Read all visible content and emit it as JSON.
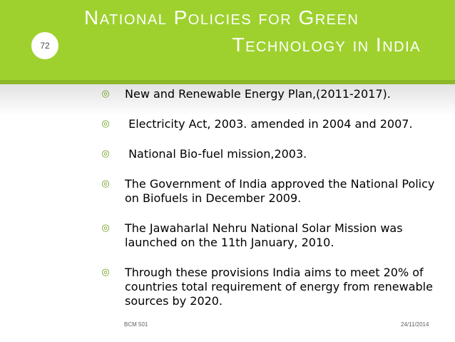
{
  "slide": {
    "title_line1": "National Policies for Green",
    "title_line2": "Technology in India",
    "page_number": "72",
    "bullet_icon": "target-bullet-icon",
    "bullets": [
      "New and Renewable Energy Plan,(2011-2017).",
      " Electricity Act, 2003. amended in 2004 and 2007.",
      " National Bio-fuel mission,2003.",
      "The Government of India approved the National Policy on Biofuels in December 2009.",
      "The Jawaharlal Nehru National Solar Mission was launched on the 11th January, 2010.",
      " Through these provisions India aims to meet 20% of countries total requirement of energy from renewable sources by 2020."
    ],
    "footer_left": "BCM 501",
    "footer_right": "24/11/2014"
  },
  "colors": {
    "header_green": "#9ed12e",
    "bullet_green": "#6a9a18"
  }
}
